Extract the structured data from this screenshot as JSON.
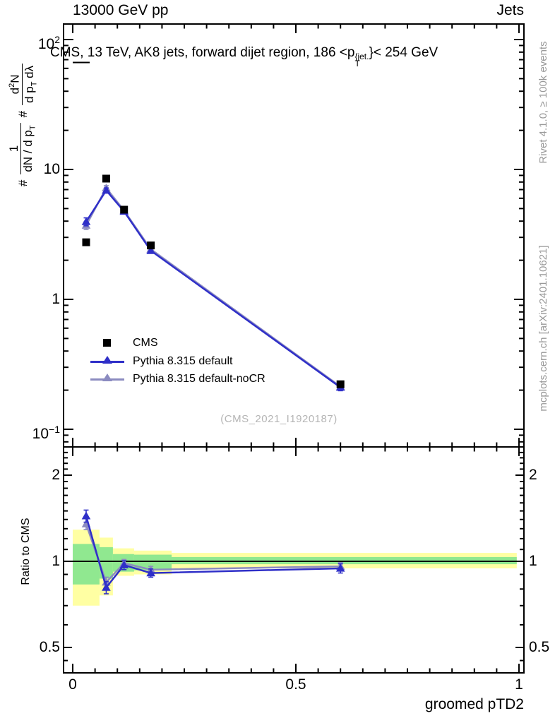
{
  "header": {
    "left": "13000 GeV pp",
    "right": "Jets"
  },
  "title": {
    "pre": "CMS, 13 TeV, AK8 jets, forward dijet region, 186 <p",
    "sup": "{jet.",
    "sub": "T",
    "post": "}< 254 GeV"
  },
  "ylabel": {
    "hash1": "#",
    "num1": "1",
    "den1_pre": "dN / d p",
    "den1_sub": "T",
    "hash2": "#",
    "num2_pre": "d",
    "num2_sup": "2",
    "num2_post": "N",
    "den2_pre": "d p",
    "den2_sub": "T",
    "den2_post": " dλ"
  },
  "ratio_ylabel": "Ratio to CMS",
  "xlabel": "groomed pTD2",
  "watermark": "(CMS_2021_I1920187)",
  "side_notes": {
    "top": "Rivet 4.1.0, ≥ 100k events",
    "bottom": "mcplots.cern.ch [arXiv:2401.10621]"
  },
  "chart_data": {
    "type": "line",
    "title": "CMS, 13 TeV, AK8 jets, forward dijet region, 186 <p_T^{jet} < 254 GeV",
    "xlabel": "groomed pTD2",
    "ylabel": "# 1/(dN/dp_T) # d^2N/(dp_T dlambda)",
    "ratio_ylabel": "Ratio to CMS",
    "x": [
      0.03,
      0.075,
      0.115,
      0.175,
      0.6
    ],
    "series": [
      {
        "name": "CMS",
        "marker": "square",
        "color": "#000000",
        "values": [
          2.75,
          8.5,
          4.9,
          2.6,
          0.222
        ]
      },
      {
        "name": "Pythia 8.315 default",
        "marker": "triangle",
        "color": "#2f2fc8",
        "values": [
          3.96,
          6.9,
          4.75,
          2.37,
          0.21
        ],
        "err": [
          0.28,
          0.3,
          0.2,
          0.1,
          0.012
        ],
        "ratio": [
          1.44,
          0.81,
          0.97,
          0.91,
          0.945
        ],
        "ratio_err": [
          0.07,
          0.04,
          0.035,
          0.03,
          0.035
        ]
      },
      {
        "name": "Pythia 8.315 default-noCR",
        "marker": "triangle",
        "color": "#8b8bc0",
        "values": [
          3.71,
          7.2,
          4.83,
          2.43,
          0.213
        ],
        "err": [
          0.26,
          0.3,
          0.2,
          0.1,
          0.012
        ],
        "ratio": [
          1.35,
          0.845,
          0.985,
          0.935,
          0.96
        ],
        "ratio_err": [
          0.06,
          0.035,
          0.03,
          0.025,
          0.03
        ]
      }
    ],
    "bands": {
      "edges": [
        0,
        0.06,
        0.09,
        0.1375,
        0.2215,
        0.995
      ],
      "yellow": [
        [
          0.7,
          1.29
        ],
        [
          0.76,
          1.21
        ],
        [
          0.89,
          1.11
        ],
        [
          0.9,
          1.09
        ],
        [
          0.945,
          1.07
        ]
      ],
      "green": [
        [
          0.83,
          1.15
        ],
        [
          0.87,
          1.12
        ],
        [
          0.92,
          1.06
        ],
        [
          0.93,
          1.055
        ],
        [
          0.977,
          1.035
        ]
      ],
      "yellow_color": "#ffffa3",
      "green_color": "#90e890"
    },
    "axes": {
      "x": {
        "min": -0.0206,
        "max": 1.0111,
        "major": [
          0,
          0.5,
          1
        ],
        "labels": [
          "0",
          "0.5",
          "1"
        ],
        "minor_step": 0.05
      },
      "y_main": {
        "log": true,
        "min": 0.0731,
        "max": 131.7,
        "ticks": [
          {
            "v": 100,
            "base": "10",
            "exp": "2"
          },
          {
            "v": 10,
            "base": "10",
            "exp": ""
          },
          {
            "v": 1,
            "base": "1",
            "exp": ""
          },
          {
            "v": 0.1,
            "base": "10",
            "exp": "−1"
          }
        ]
      },
      "y_ratio": {
        "log": true,
        "min": 0.4075,
        "max": 2.51,
        "major": [
          2,
          1,
          0.5
        ],
        "labels": [
          "2",
          "1",
          "0.5"
        ],
        "minor": [
          0.45,
          0.6,
          0.7,
          0.8,
          0.9,
          1.1,
          1.2,
          1.3,
          1.4,
          1.5,
          1.6,
          1.7,
          1.8,
          1.9,
          2.1,
          2.2,
          2.3,
          2.4
        ]
      }
    },
    "legend_position": "left-middle",
    "grid": false
  }
}
